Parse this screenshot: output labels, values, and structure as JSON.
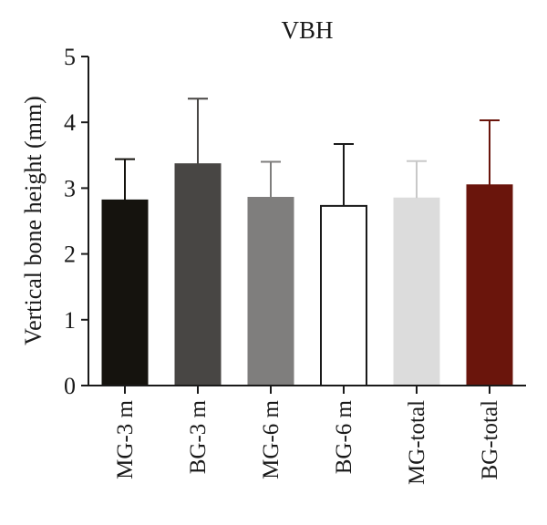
{
  "chart_data": {
    "type": "bar",
    "title": "VBH",
    "xlabel": "",
    "ylabel": "Vertical bone height (mm)",
    "ylim": [
      0,
      5
    ],
    "yticks": [
      0,
      1,
      2,
      3,
      4,
      5
    ],
    "grid": false,
    "legend": "none",
    "categories": [
      "MG-3 m",
      "BG-3 m",
      "MG-6 m",
      "BG-6 m",
      "MG-total",
      "BG-total"
    ],
    "values": [
      2.82,
      3.37,
      2.86,
      2.73,
      2.85,
      3.05
    ],
    "error_upper": [
      3.44,
      4.36,
      3.4,
      3.67,
      3.41,
      4.03
    ],
    "colors": [
      "#15130e",
      "#484644",
      "#7f7e7d",
      "#ffffff",
      "#dcdcdc",
      "#6a150c"
    ],
    "error_colors": [
      "#15130e",
      "#484644",
      "#7f7e7d",
      "#1a1a1a",
      "#c8c8c8",
      "#6a150c"
    ]
  }
}
